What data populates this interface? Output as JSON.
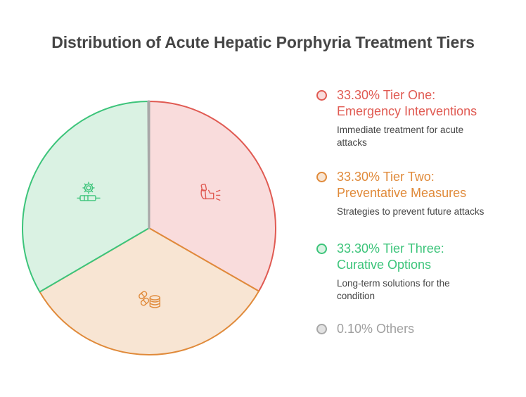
{
  "chart_data": {
    "type": "pie",
    "title": "Distribution of Acute Hepatic Porphyria Treatment Tiers",
    "slices": [
      {
        "label": "Tier One: Emergency Interventions",
        "value": 33.3,
        "display_value": "33.30%",
        "description": "Immediate treatment for acute attacks",
        "icon": "inhaler-icon",
        "fill": "#f9dcdc",
        "stroke": "#e05a52"
      },
      {
        "label": "Tier Two: Preventative Measures",
        "value": 33.3,
        "display_value": "33.30%",
        "description": "Strategies to prevent future attacks",
        "icon": "pills-coins-icon",
        "fill": "#f8e5d3",
        "stroke": "#e08a3a"
      },
      {
        "label": "Tier Three: Curative Options",
        "value": 33.3,
        "display_value": "33.30%",
        "description": "Long-term solutions for the condition",
        "icon": "gear-syringe-icon",
        "fill": "#daf2e3",
        "stroke": "#3cc47a"
      },
      {
        "label": "Others",
        "value": 0.1,
        "display_value": "0.10%",
        "description": "",
        "icon": "",
        "fill": "#e2e2e2",
        "stroke": "#a8a8a8"
      }
    ],
    "legend_position": "right",
    "start_angle": "top",
    "direction": "clockwise"
  },
  "legend": {
    "items": [
      {
        "heading_line1": "33.30% Tier One:",
        "heading_line2": "Emergency Interventions",
        "desc_line1": "Immediate treatment for acute",
        "desc_line2": "attacks"
      },
      {
        "heading_line1": "33.30% Tier Two:",
        "heading_line2": "Preventative Measures",
        "desc_line1": "Strategies to prevent future attacks",
        "desc_line2": ""
      },
      {
        "heading_line1": "33.30% Tier Three:",
        "heading_line2": "Curative Options",
        "desc_line1": "Long-term solutions for the",
        "desc_line2": "condition"
      },
      {
        "heading_line1": "0.10% Others",
        "heading_line2": "",
        "desc_line1": "",
        "desc_line2": ""
      }
    ]
  }
}
